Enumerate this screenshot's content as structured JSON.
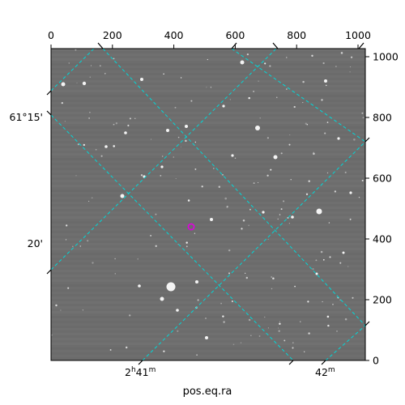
{
  "figure": {
    "xlabel": "pos.eq.ra",
    "ylabel": ""
  },
  "pixel_axes": {
    "top_ticks": [
      "0",
      "200",
      "400",
      "600",
      "800",
      "1000"
    ],
    "right_ticks": [
      "0",
      "200",
      "400",
      "600",
      "800",
      "1000"
    ]
  },
  "world_axes": {
    "dec_ticks": [
      "61°15'",
      "20'"
    ],
    "ra_ticks": [
      {
        "base": "2",
        "hsup": "h",
        "min": "41",
        "msup": "m"
      },
      {
        "base": "",
        "hsup": "",
        "min": "42",
        "msup": "m"
      }
    ]
  },
  "image": {
    "background": "#6e6e6e",
    "grid_color": "#00d8d8",
    "marker_color": "#e000e0",
    "frame_color": "#000000"
  }
}
